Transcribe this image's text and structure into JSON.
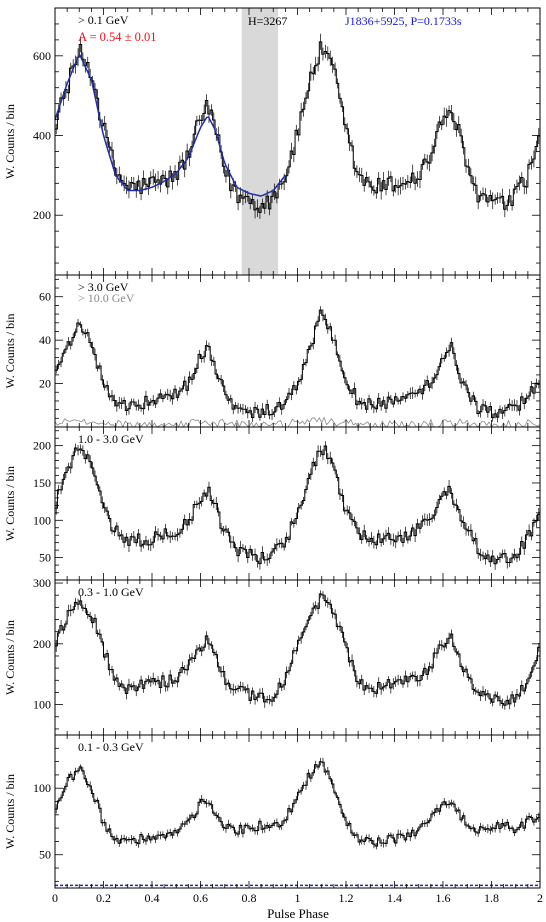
{
  "figure": {
    "xlabel": "Pulse Phase",
    "x_ticks": [
      "0",
      "0.2",
      "0.4",
      "0.6",
      "0.8",
      "1",
      "1.2",
      "1.4",
      "1.6",
      "1.8",
      "2"
    ]
  },
  "chart_data": [
    {
      "type": "line",
      "title": "",
      "ylabel": "W. Counts / bin",
      "xlim": [
        0,
        2
      ],
      "ylim": [
        50,
        720
      ],
      "yticks": [
        200,
        400,
        600
      ],
      "labels": {
        "energy": "> 0.1 GeV",
        "fit_param": "A = 0.54 ± 0.01",
        "htest": "H=3267",
        "pulsar": "J1836+5925, P=0.1733s"
      },
      "shaded_region": [
        0.77,
        0.92
      ],
      "colors": {
        "data": "#000000",
        "fit": "#1f2ea8",
        "fit_label": "#e8141a",
        "pulsar_label": "#1a1ad0",
        "shade": "#d9d9d9"
      },
      "series": [
        {
          "name": "",
          "x": [
            0,
            0.05,
            0.1,
            0.15,
            0.2,
            0.25,
            0.3,
            0.35,
            0.4,
            0.45,
            0.5,
            0.55,
            0.6,
            0.63,
            0.66,
            0.7,
            0.75,
            0.8,
            0.85,
            0.9,
            0.95,
            1.0,
            1.05,
            1.1,
            1.15,
            1.2,
            1.25,
            1.3,
            1.35,
            1.4,
            1.45,
            1.5,
            1.55,
            1.6,
            1.63,
            1.66,
            1.7,
            1.75,
            1.8,
            1.85,
            1.9,
            1.95,
            2.0
          ],
          "y": [
            430,
            520,
            610,
            560,
            420,
            310,
            270,
            272,
            280,
            285,
            300,
            350,
            440,
            470,
            420,
            310,
            250,
            240,
            225,
            245,
            300,
            400,
            540,
            620,
            560,
            410,
            300,
            270,
            272,
            278,
            285,
            300,
            350,
            440,
            470,
            420,
            310,
            250,
            235,
            225,
            245,
            300,
            390
          ]
        },
        {
          "name": "",
          "x": [
            0,
            0.05,
            0.1,
            0.15,
            0.2,
            0.25,
            0.3,
            0.35,
            0.4,
            0.45,
            0.5,
            0.55,
            0.6,
            0.63,
            0.66,
            0.7,
            0.75,
            0.8,
            0.85,
            0.9,
            0.95
          ],
          "y": [
            440,
            530,
            605,
            540,
            400,
            300,
            262,
            262,
            270,
            285,
            305,
            345,
            420,
            450,
            415,
            330,
            270,
            255,
            248,
            262,
            300
          ]
        }
      ]
    },
    {
      "type": "line",
      "title": "",
      "ylabel": "W. Counts / bin",
      "xlim": [
        0,
        2
      ],
      "ylim": [
        0,
        70
      ],
      "yticks": [
        20,
        40,
        60
      ],
      "labels": {
        "energy": "> 3.0 GeV",
        "energy_high": "> 10.0 GeV"
      },
      "colors": {
        "data": "#000000",
        "high": "#8a8a8a"
      },
      "series": [
        {
          "name": "",
          "x": [
            0,
            0.05,
            0.1,
            0.15,
            0.2,
            0.25,
            0.3,
            0.35,
            0.4,
            0.45,
            0.5,
            0.55,
            0.6,
            0.63,
            0.66,
            0.7,
            0.75,
            0.8,
            0.85,
            0.9,
            0.95,
            1.0,
            1.05,
            1.1,
            1.15,
            1.2,
            1.25,
            1.3,
            1.35,
            1.4,
            1.45,
            1.5,
            1.55,
            1.6,
            1.63,
            1.66,
            1.7,
            1.75,
            1.8,
            1.85,
            1.9,
            1.95,
            2.0
          ],
          "y": [
            28,
            35,
            50,
            38,
            20,
            12,
            10,
            11,
            12,
            13,
            15,
            20,
            32,
            38,
            28,
            15,
            8,
            7,
            7,
            8,
            12,
            20,
            35,
            55,
            40,
            22,
            12,
            10,
            11,
            12,
            13,
            15,
            20,
            33,
            38,
            28,
            15,
            8,
            7,
            7,
            9,
            14,
            22
          ]
        },
        {
          "name": "",
          "x": [
            0,
            0.1,
            0.2,
            0.3,
            0.4,
            0.5,
            0.6,
            0.7,
            0.8,
            0.9,
            1.0,
            1.1,
            1.2,
            1.3,
            1.4,
            1.5,
            1.6,
            1.7,
            1.8,
            1.9,
            2.0
          ],
          "y": [
            2,
            3,
            2,
            1,
            1,
            1,
            2,
            2,
            1,
            1,
            2,
            3,
            2,
            1,
            1,
            1,
            2,
            2,
            1,
            1,
            2
          ]
        }
      ]
    },
    {
      "type": "line",
      "title": "",
      "ylabel": "W. Counts / bin",
      "xlim": [
        0,
        2
      ],
      "ylim": [
        20,
        225
      ],
      "yticks": [
        50,
        100,
        150,
        200
      ],
      "labels": {
        "energy": "1.0 - 3.0 GeV"
      },
      "series": [
        {
          "name": "",
          "x": [
            0,
            0.05,
            0.1,
            0.15,
            0.2,
            0.25,
            0.3,
            0.35,
            0.4,
            0.45,
            0.5,
            0.55,
            0.6,
            0.63,
            0.66,
            0.7,
            0.75,
            0.8,
            0.85,
            0.9,
            0.95,
            1.0,
            1.05,
            1.1,
            1.15,
            1.2,
            1.25,
            1.3,
            1.35,
            1.4,
            1.45,
            1.5,
            1.55,
            1.6,
            1.63,
            1.66,
            1.7,
            1.75,
            1.8,
            1.85,
            1.9,
            1.95,
            2.0
          ],
          "y": [
            120,
            160,
            200,
            170,
            115,
            85,
            75,
            74,
            76,
            80,
            85,
            100,
            130,
            140,
            120,
            85,
            60,
            55,
            50,
            55,
            70,
            110,
            160,
            200,
            170,
            115,
            85,
            75,
            74,
            76,
            80,
            88,
            105,
            135,
            140,
            120,
            85,
            60,
            52,
            48,
            55,
            75,
            110
          ]
        }
      ]
    },
    {
      "type": "line",
      "title": "",
      "ylabel": "W. Counts / bin",
      "xlim": [
        0,
        2
      ],
      "ylim": [
        50,
        305
      ],
      "yticks": [
        100,
        200,
        300
      ],
      "labels": {
        "energy": "0.3 - 1.0 GeV"
      },
      "series": [
        {
          "name": "",
          "x": [
            0,
            0.05,
            0.1,
            0.15,
            0.2,
            0.25,
            0.3,
            0.35,
            0.4,
            0.45,
            0.5,
            0.55,
            0.6,
            0.63,
            0.66,
            0.7,
            0.75,
            0.8,
            0.85,
            0.9,
            0.95,
            1.0,
            1.05,
            1.1,
            1.15,
            1.2,
            1.25,
            1.3,
            1.35,
            1.4,
            1.45,
            1.5,
            1.55,
            1.6,
            1.63,
            1.66,
            1.7,
            1.75,
            1.8,
            1.85,
            1.9,
            1.95,
            2.0
          ],
          "y": [
            200,
            245,
            270,
            250,
            190,
            140,
            125,
            130,
            135,
            138,
            142,
            160,
            195,
            210,
            185,
            145,
            125,
            115,
            108,
            112,
            140,
            195,
            250,
            275,
            255,
            190,
            140,
            125,
            130,
            135,
            138,
            145,
            165,
            200,
            210,
            185,
            145,
            125,
            115,
            105,
            110,
            140,
            190
          ]
        }
      ]
    },
    {
      "type": "line",
      "title": "",
      "ylabel": "W. Counts / bin",
      "xlim": [
        0,
        2
      ],
      "ylim": [
        25,
        140
      ],
      "yticks": [
        50,
        100
      ],
      "labels": {
        "energy": "0.1 - 0.3 GeV"
      },
      "dashed_baseline": 27,
      "series": [
        {
          "name": "",
          "x": [
            0,
            0.05,
            0.1,
            0.15,
            0.2,
            0.25,
            0.3,
            0.35,
            0.4,
            0.45,
            0.5,
            0.55,
            0.6,
            0.63,
            0.66,
            0.7,
            0.75,
            0.8,
            0.85,
            0.9,
            0.95,
            1.0,
            1.05,
            1.1,
            1.15,
            1.2,
            1.25,
            1.3,
            1.35,
            1.4,
            1.45,
            1.5,
            1.55,
            1.6,
            1.63,
            1.66,
            1.7,
            1.75,
            1.8,
            1.85,
            1.9,
            1.95,
            2.0
          ],
          "y": [
            85,
            105,
            115,
            100,
            75,
            62,
            60,
            62,
            63,
            64,
            68,
            75,
            88,
            90,
            82,
            72,
            68,
            70,
            72,
            70,
            78,
            92,
            110,
            120,
            100,
            75,
            62,
            60,
            60,
            62,
            64,
            68,
            76,
            88,
            90,
            82,
            72,
            68,
            70,
            72,
            70,
            75,
            80
          ]
        }
      ]
    }
  ]
}
